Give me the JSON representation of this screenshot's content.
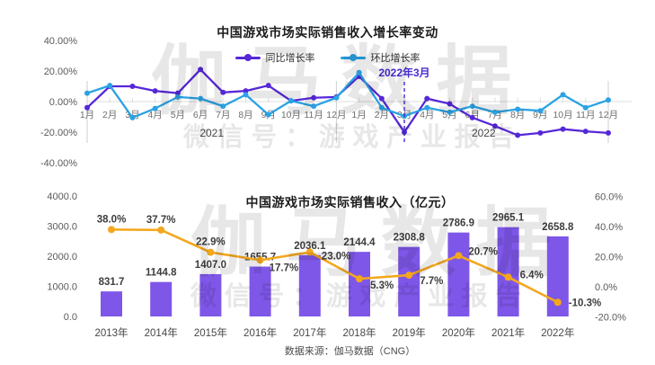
{
  "page": {
    "background": "#ffffff"
  },
  "watermark": {
    "brand": "伽马数据",
    "wechat": "微信号：游戏产业报告"
  },
  "source_note": "数据来源：伽马数据（CNG）",
  "chart_data": [
    {
      "type": "line",
      "title": "中国游戏市场实际销售收入增长率变动",
      "ylim": [
        -40,
        40
      ],
      "yticks": [
        "40.00%",
        "20.00%",
        "0.00%",
        "-20.00%",
        "-40.00%"
      ],
      "ytick_values": [
        40,
        20,
        0,
        -20,
        -40
      ],
      "grid": false,
      "legend_position": "top-center",
      "x_months": [
        "1月",
        "2月",
        "3月",
        "4月",
        "5月",
        "6月",
        "7月",
        "8月",
        "9月",
        "10月",
        "11月",
        "12月",
        "1月",
        "2月",
        "3月",
        "4月",
        "5月",
        "6月",
        "7月",
        "8月",
        "9月",
        "10月",
        "11月",
        "12月"
      ],
      "year_labels": [
        "2021",
        "2022"
      ],
      "annotation": {
        "label": "2022年3月",
        "month_index": 14,
        "color": "#4a2bd4"
      },
      "series": [
        {
          "name": "同比增长率",
          "color": "#5628d8",
          "values": [
            -4,
            10,
            10,
            7,
            5.5,
            21,
            6,
            7,
            10.5,
            0.5,
            2.5,
            3,
            16.5,
            2,
            -20,
            2,
            -1.5,
            -10.5,
            -16,
            -22,
            -20.5,
            -18,
            -19.5,
            -20.5
          ]
        },
        {
          "name": "环比增长率",
          "color": "#2aa2e4",
          "values": [
            5.5,
            10.5,
            -10.5,
            -4.5,
            3,
            2,
            -3,
            4.5,
            -8.5,
            0.5,
            -3,
            2.5,
            19,
            -4,
            -9.5,
            -4,
            -7,
            -3,
            -7,
            -5,
            -6,
            4.5,
            -4,
            1
          ]
        }
      ]
    },
    {
      "type": "bar",
      "title": "中国游戏市场实际销售收入（亿元）",
      "grid": false,
      "categories": [
        "2013年",
        "2014年",
        "2015年",
        "2016年",
        "2017年",
        "2018年",
        "2019年",
        "2020年",
        "2021年",
        "2022年"
      ],
      "bars": {
        "color": "#7e57e8",
        "values": [
          831.7,
          1144.8,
          1407.0,
          1655.7,
          2036.1,
          2144.4,
          2308.8,
          2786.9,
          2965.1,
          2658.8
        ]
      },
      "line": {
        "color": "#f4a71d",
        "values": [
          38.0,
          37.7,
          22.9,
          17.7,
          23.0,
          5.3,
          7.7,
          20.7,
          6.4,
          -10.3
        ]
      },
      "left_axis": {
        "lim": [
          0,
          4000
        ],
        "ticks": [
          "4000.0",
          "3000.0",
          "2000.0",
          "1000.0",
          "0.0"
        ],
        "tick_values": [
          4000,
          3000,
          2000,
          1000,
          0
        ]
      },
      "right_axis": {
        "lim": [
          -20,
          60
        ],
        "ticks": [
          "60.0%",
          "40.0%",
          "20.0%",
          "0.0%",
          "-20.0%"
        ],
        "tick_values": [
          60,
          40,
          20,
          0,
          -20
        ]
      }
    }
  ]
}
